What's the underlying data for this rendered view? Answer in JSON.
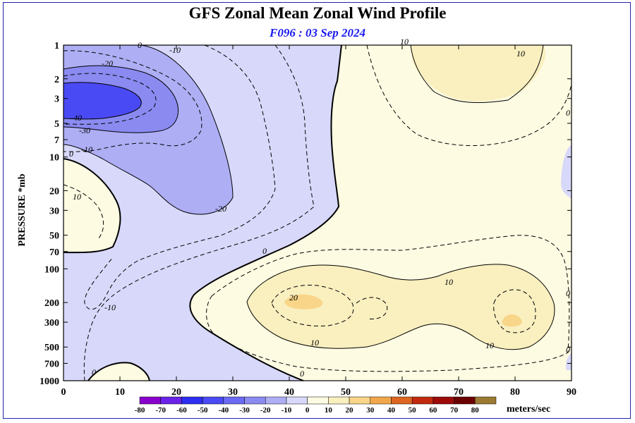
{
  "chart_data": {
    "type": "heatmap",
    "title": "GFS Zonal Mean Zonal Wind Profile",
    "subtitle": "F096 : 03 Sep 2024",
    "ylabel": "PRESSURE *mb",
    "x_ticks": [
      0,
      10,
      20,
      30,
      40,
      50,
      60,
      70,
      80,
      90
    ],
    "xlim": [
      0,
      90
    ],
    "y_ticks": [
      1,
      2,
      3,
      5,
      7,
      10,
      20,
      30,
      50,
      70,
      100,
      200,
      300,
      500,
      700,
      1000
    ],
    "ylim": [
      1,
      1000
    ],
    "y_scale": "log",
    "contour_labels": [
      "-40",
      "-30",
      "-20",
      "-10",
      "0",
      "10",
      "20"
    ],
    "colorbar": {
      "levels": [
        -80,
        -70,
        -60,
        -50,
        -40,
        -30,
        -20,
        -10,
        0,
        10,
        20,
        30,
        40,
        50,
        60,
        70,
        80
      ],
      "colors": [
        "#8800cc",
        "#6a22e8",
        "#2e2ef2",
        "#4a4af5",
        "#6a6af3",
        "#8a8af1",
        "#aeaef5",
        "#d8d8fb",
        "#fdfbe2",
        "#f9efbf",
        "#f8d588",
        "#f3a74b",
        "#dd6622",
        "#c22a10",
        "#9c0a0a",
        "#6a0000",
        "#9b7a32"
      ],
      "units": "meters/sec"
    }
  }
}
